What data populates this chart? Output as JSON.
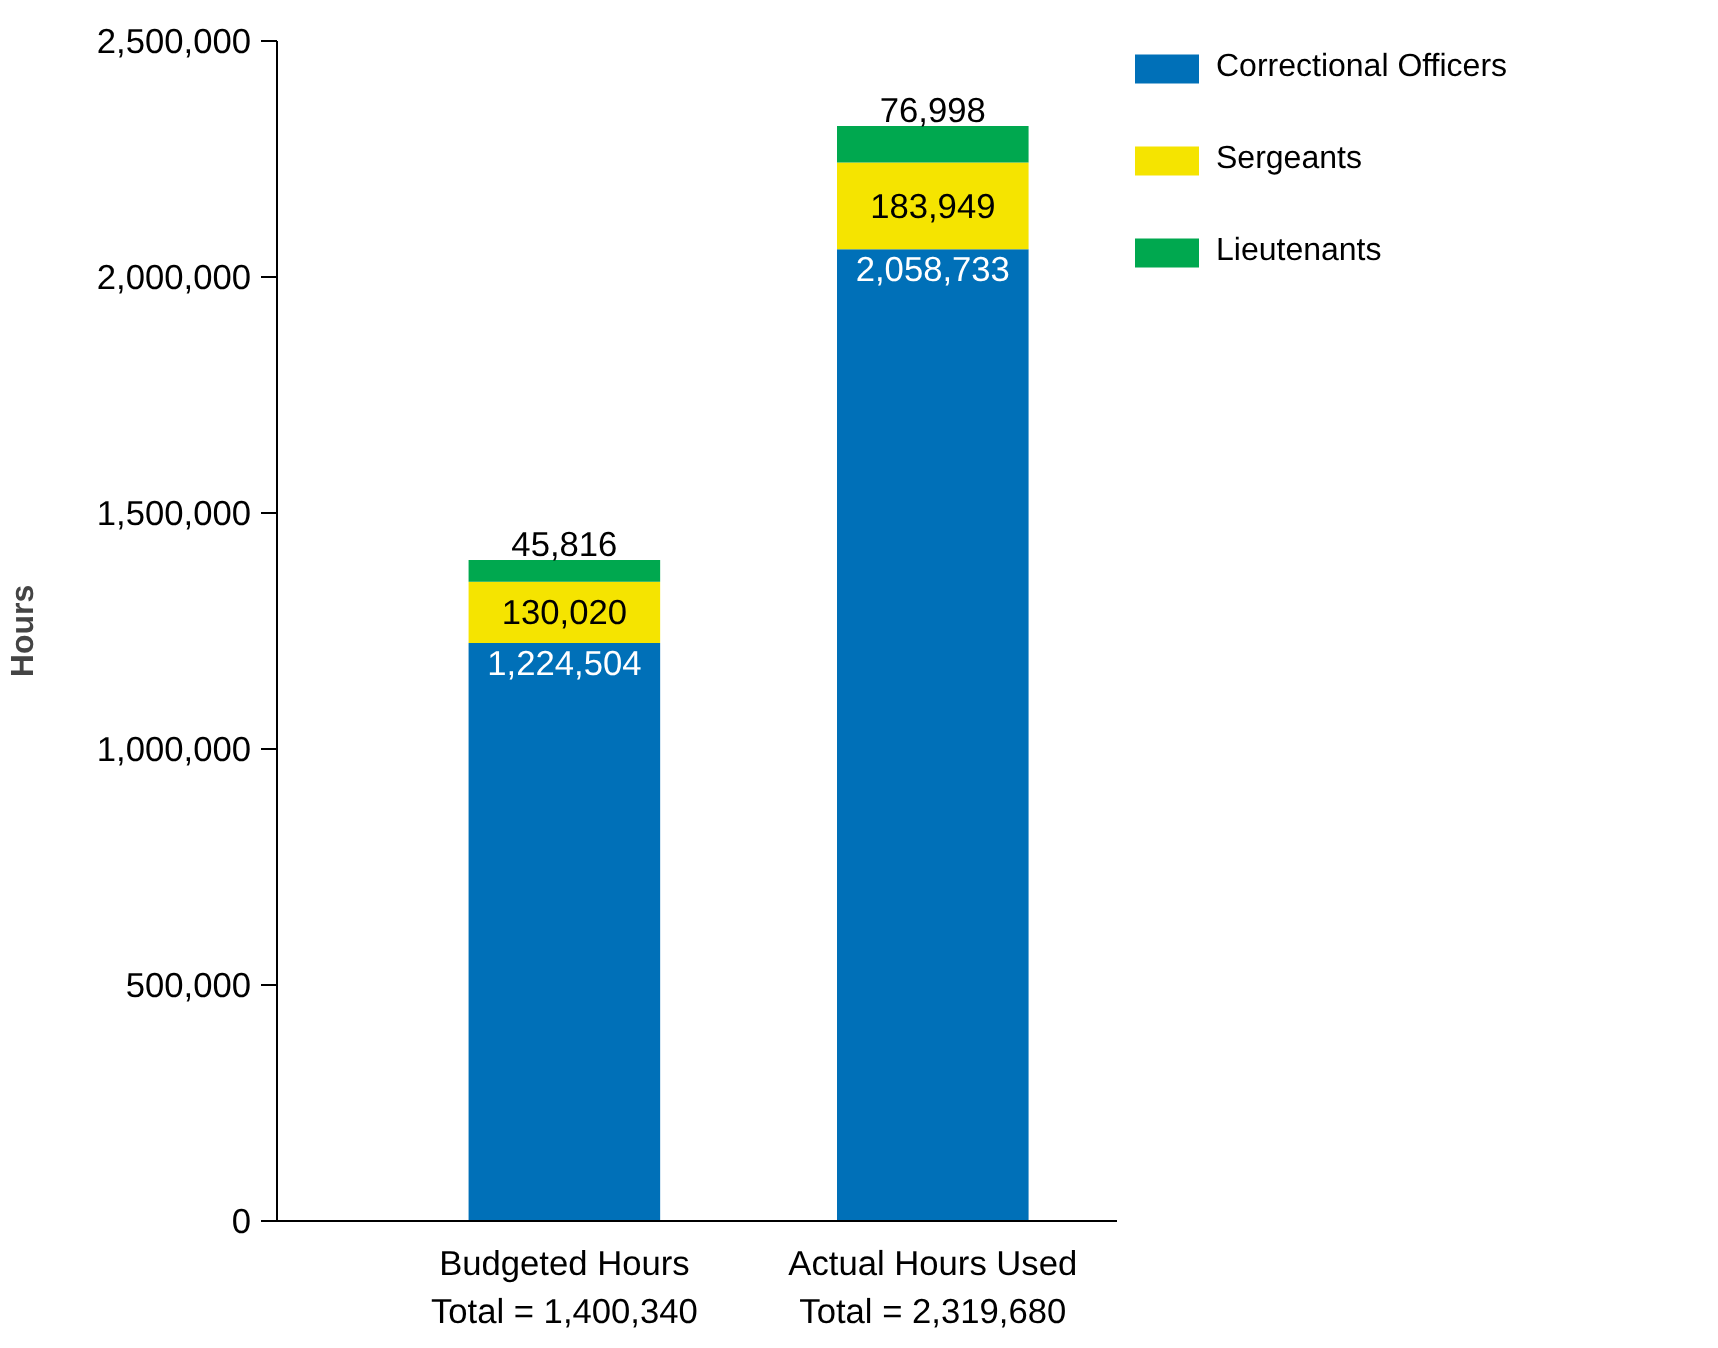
{
  "chart_data": {
    "type": "bar",
    "stacked": true,
    "ylabel": "Hours",
    "categories": [
      "Budgeted Hours\nTotal = 1,400,340",
      "Actual Hours Used\nTotal = 2,319,680"
    ],
    "series": [
      {
        "name": "Correctional Officers",
        "color": "#0070b8",
        "values": [
          1224504,
          2058733
        ],
        "value_labels": [
          "1,224,504",
          "2,058,733"
        ]
      },
      {
        "name": "Sergeants",
        "color": "#f5e400",
        "values": [
          130020,
          183949
        ],
        "value_labels": [
          "130,020",
          "183,949"
        ]
      },
      {
        "name": "Lieutenants",
        "color": "#00a84f",
        "values": [
          45816,
          76998
        ],
        "value_labels": [
          "45,816",
          "76,998"
        ]
      }
    ],
    "ylim": [
      0,
      2500000
    ],
    "yticks": [
      0,
      {
        "value": 500000,
        "label": "500,000"
      },
      {
        "value": 1000000,
        "label": "1,000,000"
      },
      {
        "value": 1500000,
        "label": "1,500,000"
      },
      {
        "value": 2000000,
        "label": "2,000,000"
      },
      {
        "value": 2500000,
        "label": "2,500,000"
      }
    ],
    "grid": false,
    "legend": "top right"
  }
}
